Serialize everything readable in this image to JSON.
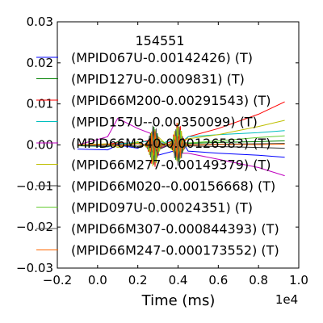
{
  "chart_data": {
    "type": "line",
    "title": "154551",
    "xlabel": "Time (ms)",
    "ylabel": "",
    "x_offset_label": "1e4",
    "xlim": [
      -0.2,
      1.0
    ],
    "ylim": [
      -0.03,
      0.03
    ],
    "x_ticks": [
      -0.2,
      0.0,
      0.2,
      0.4,
      0.6,
      0.8,
      1.0
    ],
    "x_tick_labels": [
      "−0.2",
      "0.0",
      "0.2",
      "0.4",
      "0.6",
      "0.8",
      "1.0"
    ],
    "y_ticks": [
      0.03,
      0.02,
      0.01,
      0.0,
      -0.01,
      -0.02,
      -0.03
    ],
    "y_tick_labels": [
      "0.03",
      "0.02",
      "0.01",
      "0.00",
      "−0.01",
      "−0.02",
      "−0.03"
    ],
    "legend_position": "upper-left",
    "series": [
      {
        "name": "(MPID067U-0.00142426) (T)",
        "color": "#0000ff",
        "x": [
          -0.1,
          0.05,
          0.1,
          0.2,
          0.28,
          0.3,
          0.4,
          0.42,
          0.45,
          0.6,
          0.8,
          0.93
        ],
        "y": [
          -0.001,
          -0.0012,
          0.0,
          -0.0008,
          0.0015,
          -0.0025,
          -0.0012,
          0.001,
          -0.0015,
          -0.002,
          -0.0025,
          -0.003
        ]
      },
      {
        "name": "(MPID127U-0.0009831) (T)",
        "color": "#008000",
        "x": [
          -0.1,
          0.05,
          0.1,
          0.2,
          0.28,
          0.3,
          0.4,
          0.42,
          0.45,
          0.6,
          0.8,
          0.93
        ],
        "y": [
          -0.0002,
          -0.0004,
          0.0008,
          -0.0006,
          0.001,
          -0.0003,
          0.0006,
          -0.0012,
          0.0004,
          0.0006,
          0.0008,
          0.001
        ]
      },
      {
        "name": "(MPID66M200-0.00291543) (T)",
        "color": "#ff0000",
        "x": [
          -0.1,
          0.05,
          0.1,
          0.2,
          0.28,
          0.3,
          0.4,
          0.42,
          0.45,
          0.6,
          0.8,
          0.93
        ],
        "y": [
          0.0,
          0.0002,
          0.0005,
          0.0004,
          0.0015,
          -0.0008,
          0.0018,
          0.0,
          0.002,
          0.004,
          0.0075,
          0.0105
        ]
      },
      {
        "name": "(MPID157U--0.00350099) (T)",
        "color": "#00bfbf",
        "x": [
          -0.1,
          0.05,
          0.1,
          0.2,
          0.28,
          0.3,
          0.4,
          0.42,
          0.45,
          0.6,
          0.8,
          0.93
        ],
        "y": [
          0.0,
          -0.0005,
          0.0003,
          0.0006,
          0.001,
          0.0002,
          0.0015,
          0.0008,
          0.002,
          0.0025,
          0.003,
          0.0035
        ]
      },
      {
        "name": "(MPID66M340-0.00126583) (T)",
        "color": "#bf00bf",
        "x": [
          -0.1,
          0.05,
          0.1,
          0.2,
          0.28,
          0.3,
          0.4,
          0.42,
          0.45,
          0.6,
          0.8,
          0.93
        ],
        "y": [
          0.0,
          0.002,
          0.0065,
          0.004,
          0.0025,
          -0.001,
          0.001,
          -0.002,
          -0.002,
          -0.0035,
          -0.0055,
          -0.0075
        ]
      },
      {
        "name": "(MPID66M277-0.00149379) (T)",
        "color": "#bfbf00",
        "x": [
          -0.1,
          0.05,
          0.1,
          0.2,
          0.28,
          0.3,
          0.4,
          0.42,
          0.45,
          0.6,
          0.8,
          0.93
        ],
        "y": [
          0.0,
          0.0003,
          -0.0006,
          0.0008,
          -0.0015,
          0.002,
          -0.0025,
          0.0012,
          0.0015,
          0.0025,
          0.0045,
          0.006
        ]
      },
      {
        "name": "(MPID66M020--0.00156668) (T)",
        "color": "#303030",
        "x": [
          -0.1,
          0.05,
          0.1,
          0.2,
          0.28,
          0.3,
          0.4,
          0.42,
          0.45,
          0.6,
          0.8,
          0.93
        ],
        "y": [
          0.0,
          -0.0004,
          0.0002,
          -0.0006,
          0.0008,
          -0.0012,
          0.0009,
          -0.0005,
          -0.0002,
          -0.0004,
          -0.0006,
          -0.0008
        ]
      },
      {
        "name": "(MPID097U-0.00024351) (T)",
        "color": "#66cc33",
        "x": [
          -0.1,
          0.05,
          0.1,
          0.2,
          0.28,
          0.3,
          0.4,
          0.42,
          0.45,
          0.6,
          0.8,
          0.93
        ],
        "y": [
          0.0,
          0.0002,
          -0.0003,
          0.0005,
          -0.001,
          0.0012,
          -0.0008,
          0.0006,
          0.0005,
          0.001,
          0.0018,
          0.0022
        ]
      },
      {
        "name": "(MPID66M307-0.000844393) (T)",
        "color": "#555555",
        "x": [
          -0.1,
          0.05,
          0.1,
          0.2,
          0.28,
          0.3,
          0.4,
          0.42,
          0.45,
          0.6,
          0.8,
          0.93
        ],
        "y": [
          0.0,
          -0.0001,
          0.0002,
          -0.0003,
          0.0006,
          -0.0005,
          0.0004,
          -0.0002,
          0.0001,
          0.0002,
          0.0003,
          0.0004
        ]
      },
      {
        "name": "(MPID66M247-0.000173552) (T)",
        "color": "#ff6600",
        "x": [
          -0.1,
          0.05,
          0.1,
          0.2,
          0.28,
          0.3,
          0.4,
          0.42,
          0.45,
          0.6,
          0.8,
          0.93
        ],
        "y": [
          0.0,
          0.0001,
          -0.0002,
          0.0003,
          -0.0004,
          0.0003,
          -0.0002,
          0.0001,
          0.0,
          0.0001,
          0.0001,
          0.0002
        ]
      }
    ]
  }
}
